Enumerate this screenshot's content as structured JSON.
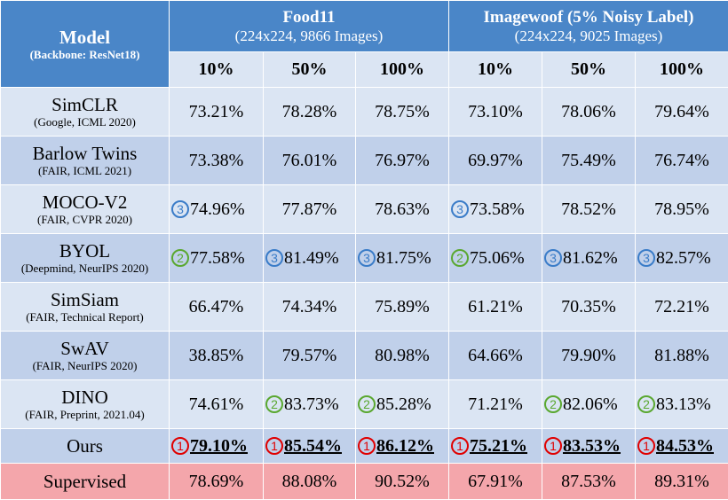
{
  "header": {
    "model_title": "Model",
    "model_sub": "(Backbone: ResNet18)",
    "groups": [
      {
        "title": "Food11",
        "sub": "(224x224, 9866 Images)"
      },
      {
        "title": "Imagewoof (5% Noisy Label)",
        "sub": "(224x224, 9025 Images)"
      }
    ],
    "pcts": [
      "10%",
      "50%",
      "100%",
      "10%",
      "50%",
      "100%"
    ]
  },
  "rank_colors": {
    "1": "#e00000",
    "2": "#5aa830",
    "3": "#3a7cc8"
  },
  "rows": [
    {
      "name": "SimCLR",
      "cite": "(Google, ICML 2020)",
      "values": [
        {
          "v": "73.21%"
        },
        {
          "v": "78.28%"
        },
        {
          "v": "78.75%"
        },
        {
          "v": "73.10%"
        },
        {
          "v": "78.06%"
        },
        {
          "v": "79.64%"
        }
      ]
    },
    {
      "name": "Barlow Twins",
      "cite": "(FAIR, ICML 2021)",
      "values": [
        {
          "v": "73.38%"
        },
        {
          "v": "76.01%"
        },
        {
          "v": "76.97%"
        },
        {
          "v": "69.97%"
        },
        {
          "v": "75.49%"
        },
        {
          "v": "76.74%"
        }
      ]
    },
    {
      "name": "MOCO-V2",
      "cite": "(FAIR, CVPR 2020)",
      "values": [
        {
          "v": "74.96%",
          "rank": "3"
        },
        {
          "v": "77.87%"
        },
        {
          "v": "78.63%"
        },
        {
          "v": "73.58%",
          "rank": "3"
        },
        {
          "v": "78.52%"
        },
        {
          "v": "78.95%"
        }
      ]
    },
    {
      "name": "BYOL",
      "cite": "(Deepmind, NeurIPS 2020)",
      "values": [
        {
          "v": "77.58%",
          "rank": "2"
        },
        {
          "v": "81.49%",
          "rank": "3"
        },
        {
          "v": "81.75%",
          "rank": "3"
        },
        {
          "v": "75.06%",
          "rank": "2"
        },
        {
          "v": "81.62%",
          "rank": "3"
        },
        {
          "v": "82.57%",
          "rank": "3"
        }
      ]
    },
    {
      "name": "SimSiam",
      "cite": "(FAIR, Technical Report)",
      "values": [
        {
          "v": "66.47%"
        },
        {
          "v": "74.34%"
        },
        {
          "v": "75.89%"
        },
        {
          "v": "61.21%"
        },
        {
          "v": "70.35%"
        },
        {
          "v": "72.21%"
        }
      ]
    },
    {
      "name": "SwAV",
      "cite": "(FAIR, NeurIPS 2020)",
      "values": [
        {
          "v": "38.85%"
        },
        {
          "v": "79.57%"
        },
        {
          "v": "80.98%"
        },
        {
          "v": "64.66%"
        },
        {
          "v": "79.90%"
        },
        {
          "v": "81.88%"
        }
      ]
    },
    {
      "name": "DINO",
      "cite": "(FAIR, Preprint, 2021.04)",
      "values": [
        {
          "v": "74.61%"
        },
        {
          "v": "83.73%",
          "rank": "2"
        },
        {
          "v": "85.28%",
          "rank": "2"
        },
        {
          "v": "71.21%"
        },
        {
          "v": "82.06%",
          "rank": "2"
        },
        {
          "v": "83.13%",
          "rank": "2"
        }
      ]
    },
    {
      "name": "Ours",
      "cite": "",
      "values": [
        {
          "v": "79.10%",
          "rank": "1",
          "best": true
        },
        {
          "v": "85.54%",
          "rank": "1",
          "best": true
        },
        {
          "v": "86.12%",
          "rank": "1",
          "best": true
        },
        {
          "v": "75.21%",
          "rank": "1",
          "best": true
        },
        {
          "v": "83.53%",
          "rank": "1",
          "best": true
        },
        {
          "v": "84.53%",
          "rank": "1",
          "best": true
        }
      ]
    },
    {
      "name": "Supervised",
      "cite": "",
      "values": [
        {
          "v": "78.69%"
        },
        {
          "v": "88.08%"
        },
        {
          "v": "90.52%"
        },
        {
          "v": "67.91%"
        },
        {
          "v": "87.53%"
        },
        {
          "v": "89.31%"
        }
      ]
    }
  ]
}
